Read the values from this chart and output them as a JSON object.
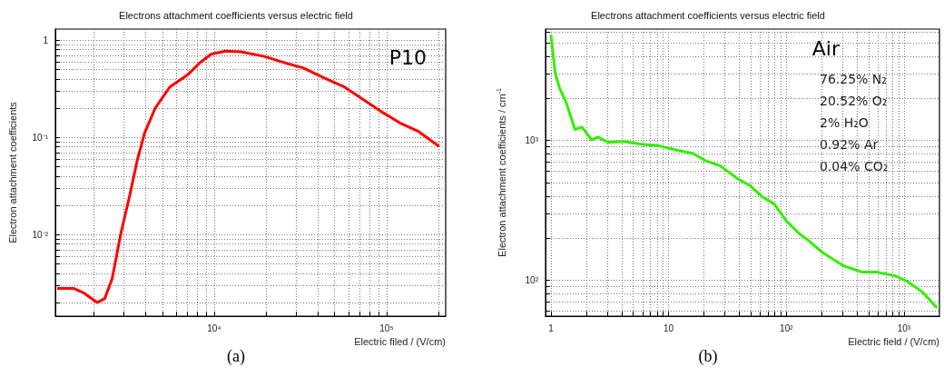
{
  "chart_data": [
    {
      "type": "line",
      "title": "Electrons attachment coefficients versus electric field",
      "xlabel": "Electric filed / (V/cm)",
      "ylabel": "Electron attachment coefficients",
      "log": "xy",
      "grid": true,
      "marker": "none",
      "xlim": [
        1200,
        220000
      ],
      "ylim": [
        0.00145,
        1.3
      ],
      "xticks": [
        {
          "value": 2000,
          "label": null
        },
        {
          "value": 3000,
          "label": null
        },
        {
          "value": 4000,
          "label": null
        },
        {
          "value": 5000,
          "label": null
        },
        {
          "value": 6000,
          "label": null
        },
        {
          "value": 7000,
          "label": null
        },
        {
          "value": 8000,
          "label": null
        },
        {
          "value": 9000,
          "label": null
        },
        {
          "value": 10000,
          "label": "10⁴"
        },
        {
          "value": 20000,
          "label": null
        },
        {
          "value": 30000,
          "label": null
        },
        {
          "value": 40000,
          "label": null
        },
        {
          "value": 50000,
          "label": null
        },
        {
          "value": 60000,
          "label": null
        },
        {
          "value": 70000,
          "label": null
        },
        {
          "value": 80000,
          "label": null
        },
        {
          "value": 90000,
          "label": null
        },
        {
          "value": 100000,
          "label": "10⁵"
        },
        {
          "value": 200000,
          "label": null
        }
      ],
      "yticks": [
        {
          "value": 0.002,
          "label": null
        },
        {
          "value": 0.003,
          "label": null
        },
        {
          "value": 0.004,
          "label": null
        },
        {
          "value": 0.005,
          "label": null
        },
        {
          "value": 0.006,
          "label": null
        },
        {
          "value": 0.007,
          "label": null
        },
        {
          "value": 0.008,
          "label": null
        },
        {
          "value": 0.009,
          "label": null
        },
        {
          "value": 0.01,
          "label": "10⁻²"
        },
        {
          "value": 0.02,
          "label": null
        },
        {
          "value": 0.03,
          "label": null
        },
        {
          "value": 0.04,
          "label": null
        },
        {
          "value": 0.05,
          "label": null
        },
        {
          "value": 0.06,
          "label": null
        },
        {
          "value": 0.07,
          "label": null
        },
        {
          "value": 0.08,
          "label": null
        },
        {
          "value": 0.09,
          "label": null
        },
        {
          "value": 0.1,
          "label": "10⁻¹"
        },
        {
          "value": 0.2,
          "label": null
        },
        {
          "value": 0.3,
          "label": null
        },
        {
          "value": 0.4,
          "label": null
        },
        {
          "value": 0.5,
          "label": null
        },
        {
          "value": 0.6,
          "label": null
        },
        {
          "value": 0.7,
          "label": null
        },
        {
          "value": 0.8,
          "label": null
        },
        {
          "value": 0.9,
          "label": null
        },
        1
      ],
      "x": [
        1230,
        1530,
        1760,
        2100,
        2320,
        2560,
        2880,
        3250,
        3580,
        3950,
        4540,
        5530,
        7020,
        8210,
        9620,
        11700,
        14300,
        19600,
        26900,
        32700,
        43200,
        56900,
        72100,
        95100,
        120000,
        153000,
        201000
      ],
      "series": [
        {
          "color": "#ff0000",
          "values": [
            0.0028,
            0.0028,
            0.0025,
            0.002,
            0.0022,
            0.0035,
            0.0104,
            0.026,
            0.058,
            0.111,
            0.198,
            0.33,
            0.44,
            0.58,
            0.72,
            0.77,
            0.76,
            0.68,
            0.57,
            0.52,
            0.41,
            0.33,
            0.25,
            0.18,
            0.14,
            0.115,
            0.081
          ]
        }
      ],
      "annotations": [
        "P10",
        "(a)"
      ]
    },
    {
      "type": "line",
      "title": "Electrons attachment coefficients versus electric field",
      "xlabel": "Electric field / (V/cm)",
      "ylabel": "Electron attachment coefficients / cm$^{-1}$",
      "log": "xy",
      "grid": true,
      "marker": "none",
      "xlim": [
        0.9,
        2000
      ],
      "ylim": [
        55,
        6300
      ],
      "xticks": [
        1,
        {
          "value": 2,
          "label": null
        },
        {
          "value": 3,
          "label": null
        },
        {
          "value": 4,
          "label": null
        },
        {
          "value": 5,
          "label": null
        },
        {
          "value": 6,
          "label": null
        },
        {
          "value": 7,
          "label": null
        },
        {
          "value": 8,
          "label": null
        },
        {
          "value": 9,
          "label": null
        },
        10,
        {
          "value": 20,
          "label": null
        },
        {
          "value": 30,
          "label": null
        },
        {
          "value": 40,
          "label": null
        },
        {
          "value": 50,
          "label": null
        },
        {
          "value": 60,
          "label": null
        },
        {
          "value": 70,
          "label": null
        },
        {
          "value": 80,
          "label": null
        },
        {
          "value": 90,
          "label": null
        },
        {
          "value": 100,
          "label": "10²"
        },
        {
          "value": 200,
          "label": null
        },
        {
          "value": 300,
          "label": null
        },
        {
          "value": 400,
          "label": null
        },
        {
          "value": 500,
          "label": null
        },
        {
          "value": 600,
          "label": null
        },
        {
          "value": 700,
          "label": null
        },
        {
          "value": 800,
          "label": null
        },
        {
          "value": 900,
          "label": null
        },
        {
          "value": 1000,
          "label": "10³"
        }
      ],
      "yticks": [
        {
          "value": 60,
          "label": null
        },
        {
          "value": 70,
          "label": null
        },
        {
          "value": 80,
          "label": null
        },
        {
          "value": 90,
          "label": null
        },
        {
          "value": 100,
          "label": "10²"
        },
        {
          "value": 200,
          "label": null
        },
        {
          "value": 300,
          "label": null
        },
        {
          "value": 400,
          "label": null
        },
        {
          "value": 500,
          "label": null
        },
        {
          "value": 600,
          "label": null
        },
        {
          "value": 700,
          "label": null
        },
        {
          "value": 800,
          "label": null
        },
        {
          "value": 900,
          "label": null
        },
        {
          "value": 1000,
          "label": "10³"
        },
        {
          "value": 2000,
          "label": null
        },
        {
          "value": 3000,
          "label": null
        },
        {
          "value": 4000,
          "label": null
        },
        {
          "value": 5000,
          "label": null
        },
        {
          "value": 6000,
          "label": null
        }
      ],
      "x": [
        1,
        1.09,
        1.19,
        1.34,
        1.6,
        1.83,
        2.22,
        2.5,
        3.07,
        4.12,
        5.88,
        8.38,
        11.9,
        16,
        20.3,
        27.3,
        38.9,
        49.2,
        62.3,
        78.9,
        100,
        127,
        160,
        203,
        307,
        438,
        588,
        838,
        1060,
        1430,
        1910
      ],
      "series": [
        {
          "color": "#33ee00",
          "values": [
            5700,
            3000,
            2350,
            1900,
            1200,
            1250,
            1010,
            1060,
            970,
            985,
            940,
            915,
            850,
            810,
            720,
            660,
            530,
            475,
            395,
            350,
            265,
            217,
            187,
            157,
            126,
            114,
            114,
            107,
            98,
            82,
            63
          ]
        }
      ],
      "annotations": [
        "Air",
        "76.25% N₂",
        "20.52% O₂",
        "2% H₂O",
        "0.92% Ar",
        "0.04% CO₂",
        "(b)"
      ]
    }
  ]
}
